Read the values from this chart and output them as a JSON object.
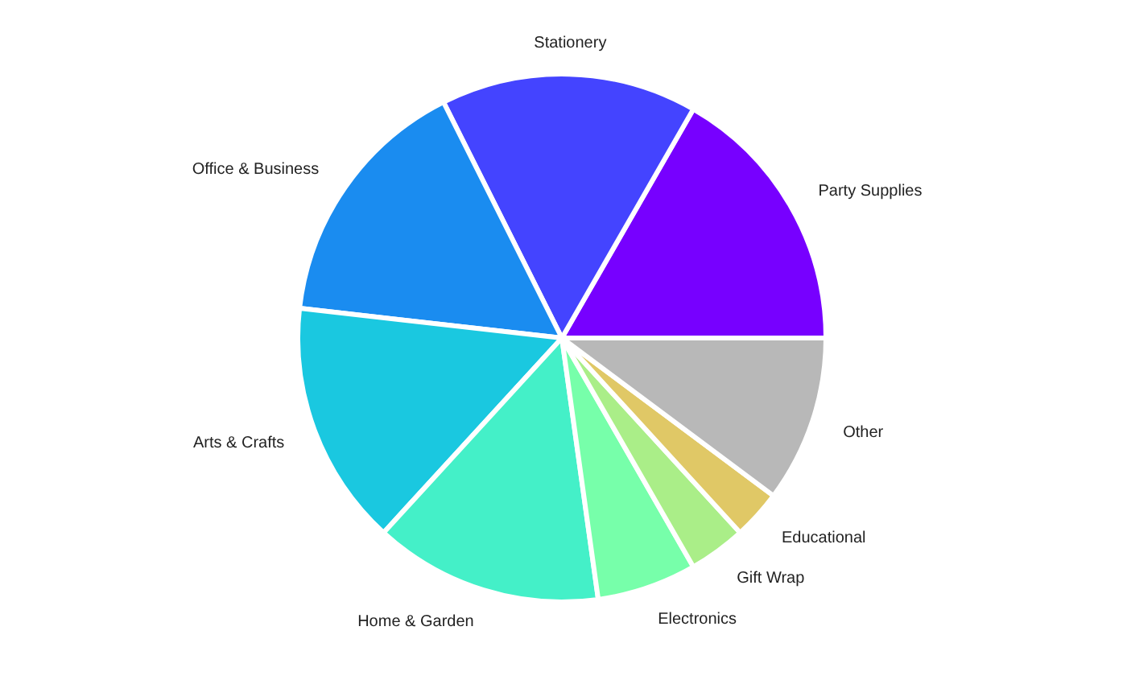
{
  "chart_data": {
    "type": "pie",
    "categories": [
      "Party Supplies",
      "Stationery",
      "Office & Business",
      "Arts & Crafts",
      "Home & Garden",
      "Electronics",
      "Gift Wrap",
      "Educational",
      "Other"
    ],
    "values": [
      16.7,
      15.7,
      15.8,
      15.0,
      14.0,
      6.1,
      3.5,
      3.0,
      10.2
    ],
    "colors": [
      "#7700ff",
      "#4444ff",
      "#1a8cf0",
      "#1ac8e0",
      "#44f0c8",
      "#77ffaa",
      "#aaee88",
      "#e0c866",
      "#b8b8b8"
    ]
  }
}
